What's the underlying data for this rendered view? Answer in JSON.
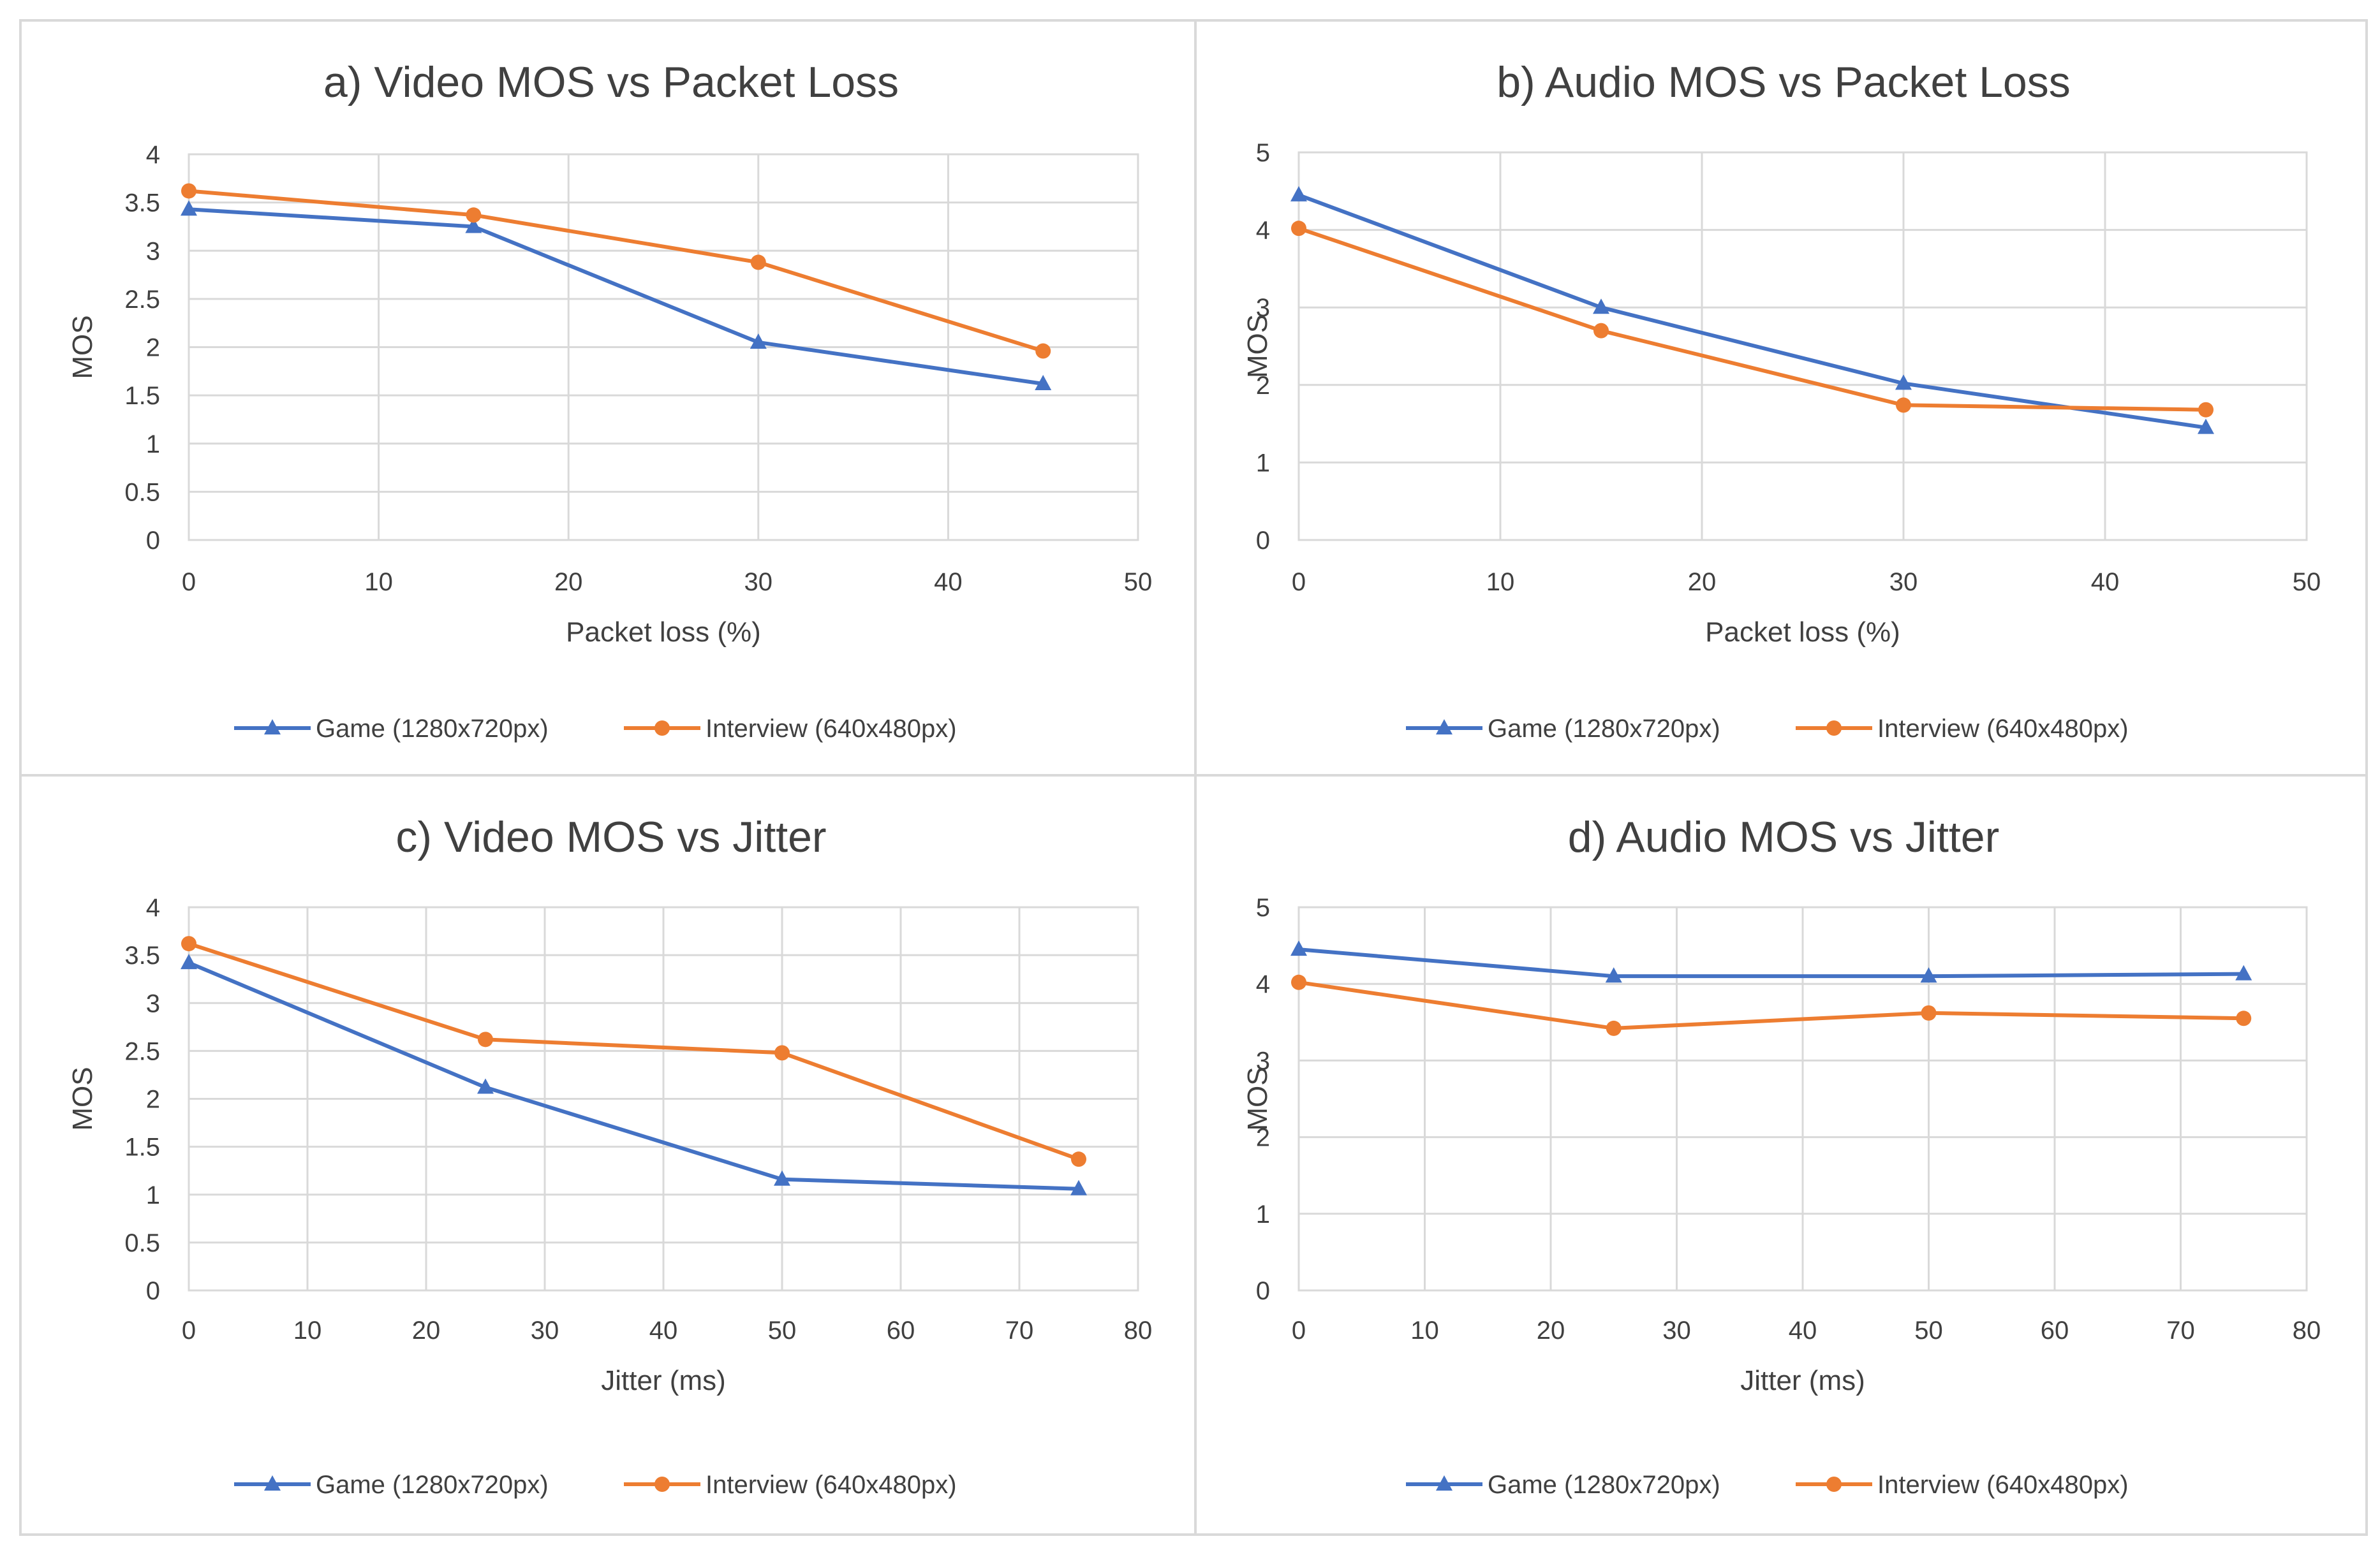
{
  "colors": {
    "game": "#4472c4",
    "interview": "#ed7d31",
    "grid": "#d9d9d9",
    "text": "#404040"
  },
  "chart_data": [
    {
      "type": "line",
      "title": "a) Video MOS vs Packet Loss",
      "xlabel": "Packet loss (%)",
      "ylabel": "MOS",
      "xlim": [
        0,
        50
      ],
      "xticks": [
        "0",
        "10",
        "20",
        "30",
        "40",
        "50"
      ],
      "ylim": [
        0,
        4
      ],
      "yticks": [
        "0",
        "0.5",
        "1",
        "1.5",
        "2",
        "2.5",
        "3",
        "3.5",
        "4"
      ],
      "grid": true,
      "legend_position": "bottom",
      "series": [
        {
          "name": "Game (1280x720px)",
          "marker": "triangle",
          "x": [
            0,
            15,
            30,
            45
          ],
          "y": [
            3.43,
            3.25,
            2.05,
            1.62
          ]
        },
        {
          "name": "Interview (640x480px)",
          "marker": "circle",
          "x": [
            0,
            15,
            30,
            45
          ],
          "y": [
            3.62,
            3.37,
            2.88,
            1.96
          ]
        }
      ]
    },
    {
      "type": "line",
      "title": "b) Audio MOS vs Packet Loss",
      "xlabel": "Packet loss (%)",
      "ylabel": "MOS",
      "xlim": [
        0,
        50
      ],
      "xticks": [
        "0",
        "10",
        "20",
        "30",
        "40",
        "50"
      ],
      "ylim": [
        0,
        5
      ],
      "yticks": [
        "0",
        "1",
        "2",
        "3",
        "4",
        "5"
      ],
      "grid": true,
      "legend_position": "bottom",
      "series": [
        {
          "name": "Game (1280x720px)",
          "marker": "triangle",
          "x": [
            0,
            15,
            30,
            45
          ],
          "y": [
            4.45,
            3.0,
            2.02,
            1.45
          ]
        },
        {
          "name": "Interview (640x480px)",
          "marker": "circle",
          "x": [
            0,
            15,
            30,
            45
          ],
          "y": [
            4.02,
            2.7,
            1.74,
            1.68
          ]
        }
      ]
    },
    {
      "type": "line",
      "title": "c) Video MOS vs Jitter",
      "xlabel": "Jitter (ms)",
      "ylabel": "MOS",
      "xlim": [
        0,
        80
      ],
      "xticks": [
        "0",
        "10",
        "20",
        "30",
        "40",
        "50",
        "60",
        "70",
        "80"
      ],
      "ylim": [
        0,
        4
      ],
      "yticks": [
        "0",
        "0.5",
        "1",
        "1.5",
        "2",
        "2.5",
        "3",
        "3.5",
        "4"
      ],
      "grid": true,
      "legend_position": "bottom",
      "series": [
        {
          "name": "Game (1280x720px)",
          "marker": "triangle",
          "x": [
            0,
            25,
            50,
            75
          ],
          "y": [
            3.42,
            2.12,
            1.16,
            1.06
          ]
        },
        {
          "name": "Interview (640x480px)",
          "marker": "circle",
          "x": [
            0,
            25,
            50,
            75
          ],
          "y": [
            3.62,
            2.62,
            2.48,
            1.37
          ]
        }
      ]
    },
    {
      "type": "line",
      "title": "d) Audio MOS vs Jitter",
      "xlabel": "Jitter (ms)",
      "ylabel": "MOS",
      "xlim": [
        0,
        80
      ],
      "xticks": [
        "0",
        "10",
        "20",
        "30",
        "40",
        "50",
        "60",
        "70",
        "80"
      ],
      "ylim": [
        0,
        5
      ],
      "yticks": [
        "0",
        "1",
        "2",
        "3",
        "4",
        "5"
      ],
      "grid": true,
      "legend_position": "bottom",
      "series": [
        {
          "name": "Game (1280x720px)",
          "marker": "triangle",
          "x": [
            0,
            25,
            50,
            75
          ],
          "y": [
            4.45,
            4.1,
            4.1,
            4.13
          ]
        },
        {
          "name": "Interview (640x480px)",
          "marker": "circle",
          "x": [
            0,
            25,
            50,
            75
          ],
          "y": [
            4.02,
            3.42,
            3.62,
            3.55
          ]
        }
      ]
    }
  ]
}
